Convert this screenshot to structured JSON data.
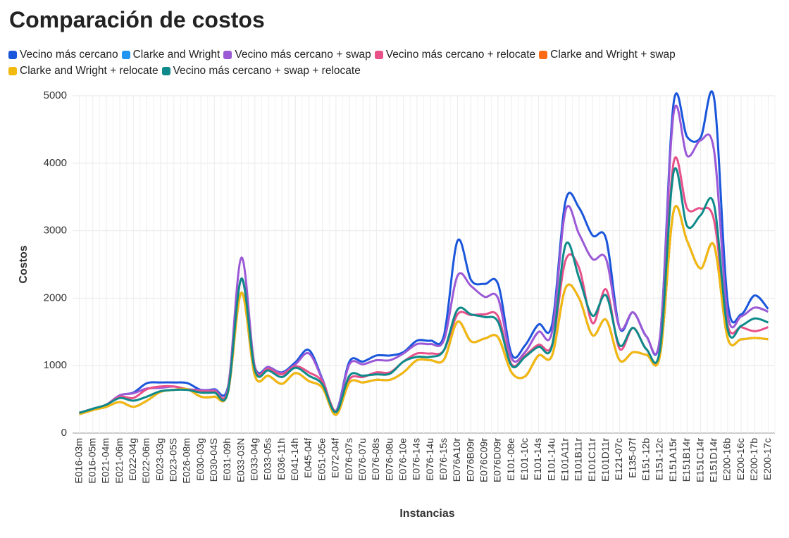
{
  "chart_data": {
    "type": "line",
    "title": "Comparación de costos",
    "x_label": "Instancias",
    "y_label": "Costos",
    "categories": [
      "E016-03m",
      "E016-05m",
      "E021-04m",
      "E021-06m",
      "E022-04g",
      "E022-06m",
      "E023-03g",
      "E023-05S",
      "E026-08m",
      "E030-03g",
      "E030-04S",
      "E031-09h",
      "E033-03N",
      "E033-04g",
      "E033-05s",
      "E036-11h",
      "E041-14h",
      "E045-04f",
      "E051-05e",
      "E072-04f",
      "E076-07s",
      "E076-07u",
      "E076-08s",
      "E076-08u",
      "E076-10e",
      "E076-14s",
      "E076-14u",
      "E076-15s",
      "E076A10r",
      "E076B09r",
      "E076C09r",
      "E076D09r",
      "E101-08e",
      "E101-10c",
      "E101-14s",
      "E101-14u",
      "E101A11r",
      "E101B11r",
      "E101C11r",
      "E101D11r",
      "E121-07c",
      "E135-07f",
      "E151-12b",
      "E151-12c",
      "E151A15r",
      "E151B14r",
      "E151C14r",
      "E151D14r",
      "E200-16b",
      "E200-16c",
      "E200-17b",
      "E200-17c"
    ],
    "series": [
      {
        "name": "Vecino más cercano",
        "color": "#1a56db",
        "values": [
          300,
          360,
          420,
          560,
          600,
          740,
          750,
          750,
          740,
          640,
          650,
          680,
          2280,
          980,
          980,
          900,
          1050,
          1230,
          800,
          330,
          1060,
          1060,
          1150,
          1150,
          1200,
          1370,
          1370,
          1450,
          2850,
          2270,
          2210,
          2210,
          1170,
          1300,
          1610,
          1610,
          3440,
          3340,
          2930,
          2880,
          1560,
          1790,
          1430,
          1430,
          4890,
          4390,
          4380,
          4960,
          1940,
          1760,
          2040,
          1840
        ]
      },
      {
        "name": "Clarke and Wright",
        "color": "#2196f3",
        "values": [
          280,
          340,
          390,
          460,
          390,
          480,
          610,
          640,
          650,
          540,
          540,
          600,
          2080,
          850,
          850,
          730,
          890,
          770,
          670,
          270,
          750,
          750,
          790,
          790,
          900,
          1080,
          1080,
          1090,
          1650,
          1360,
          1400,
          1420,
          900,
          840,
          1150,
          1150,
          2150,
          2000,
          1450,
          1680,
          1080,
          1200,
          1160,
          1160,
          3290,
          2850,
          2440,
          2780,
          1410,
          1390,
          1410,
          1390
        ]
      },
      {
        "name": "Vecino más cercano + swap",
        "color": "#9b59d6",
        "values": [
          300,
          360,
          420,
          560,
          590,
          660,
          670,
          690,
          650,
          640,
          640,
          660,
          2600,
          980,
          980,
          890,
          1020,
          1180,
          790,
          330,
          1020,
          1020,
          1080,
          1080,
          1180,
          1320,
          1320,
          1380,
          2330,
          2180,
          2020,
          2000,
          1110,
          1200,
          1500,
          1500,
          3300,
          2950,
          2580,
          2580,
          1560,
          1790,
          1430,
          1430,
          4740,
          4110,
          4340,
          4180,
          1760,
          1730,
          1860,
          1800
        ]
      },
      {
        "name": "Vecino más cercano + relocate",
        "color": "#e8508a",
        "values": [
          300,
          360,
          420,
          540,
          520,
          650,
          690,
          690,
          650,
          620,
          620,
          640,
          2290,
          960,
          950,
          870,
          990,
          900,
          760,
          320,
          800,
          830,
          900,
          900,
          1060,
          1180,
          1180,
          1230,
          1760,
          1750,
          1760,
          1730,
          1020,
          1150,
          1310,
          1310,
          2560,
          2450,
          1630,
          2130,
          1250,
          1560,
          1240,
          1250,
          4010,
          3330,
          3330,
          3150,
          1600,
          1570,
          1510,
          1570
        ]
      },
      {
        "name": "Clarke and Wright + swap",
        "color": "#ff6a13",
        "values": [
          280,
          340,
          390,
          460,
          390,
          480,
          610,
          640,
          650,
          540,
          540,
          600,
          2080,
          850,
          850,
          730,
          890,
          770,
          670,
          270,
          750,
          750,
          790,
          790,
          900,
          1080,
          1080,
          1090,
          1650,
          1360,
          1400,
          1420,
          900,
          840,
          1150,
          1150,
          2150,
          2000,
          1450,
          1680,
          1080,
          1200,
          1160,
          1160,
          3290,
          2850,
          2440,
          2780,
          1410,
          1390,
          1410,
          1390
        ]
      },
      {
        "name": "Clarke and Wright + relocate",
        "color": "#f2b90f",
        "values": [
          280,
          340,
          390,
          460,
          390,
          480,
          610,
          640,
          650,
          540,
          540,
          600,
          2080,
          850,
          850,
          730,
          890,
          770,
          670,
          270,
          750,
          750,
          790,
          790,
          900,
          1080,
          1080,
          1090,
          1650,
          1360,
          1400,
          1420,
          900,
          840,
          1150,
          1150,
          2150,
          2000,
          1450,
          1680,
          1080,
          1200,
          1160,
          1160,
          3290,
          2850,
          2440,
          2780,
          1410,
          1390,
          1410,
          1390
        ]
      },
      {
        "name": "Vecino más cercano + swap + relocate",
        "color": "#0e8a8a",
        "values": [
          300,
          360,
          420,
          520,
          480,
          540,
          620,
          640,
          640,
          600,
          600,
          610,
          2290,
          930,
          930,
          830,
          970,
          850,
          720,
          310,
          850,
          850,
          870,
          880,
          1060,
          1130,
          1130,
          1230,
          1830,
          1760,
          1720,
          1650,
          1000,
          1130,
          1280,
          1290,
          2790,
          2300,
          1740,
          2040,
          1300,
          1560,
          1240,
          1250,
          3870,
          3070,
          3230,
          3380,
          1540,
          1590,
          1700,
          1640
        ]
      }
    ],
    "ylim": [
      0,
      5000
    ],
    "yticks": [
      0,
      1000,
      2000,
      3000,
      4000,
      5000
    ],
    "grid": true
  }
}
